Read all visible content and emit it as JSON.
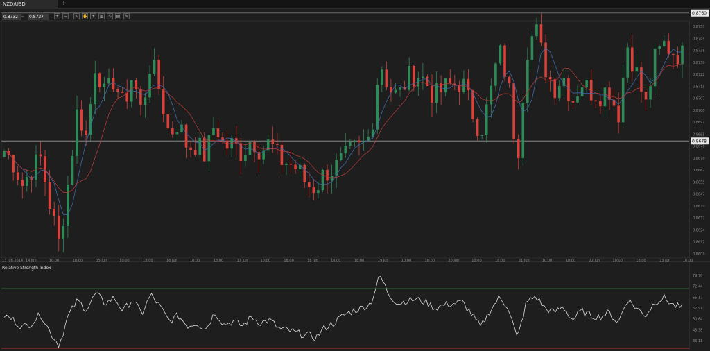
{
  "tab": {
    "symbol": "NZD/USD",
    "add_label": "+"
  },
  "quote": {
    "bid": "0.8732",
    "ask": "0.8737",
    "separator": "="
  },
  "toolbar_icons": [
    "zoom-in-icon",
    "zoom-out-icon",
    "cursor-icon",
    "hand-icon",
    "crosshair-icon",
    "chart-type-icon",
    "indicator-icon",
    "template-icon",
    "draw-icon"
  ],
  "colors": {
    "bull": "#2e8b57",
    "bear": "#d9413a",
    "ma_fast": "#3c6aa8",
    "ma_slow": "#b23a3a",
    "rsi_line": "#dcdcdc",
    "rsi_upper": "#3a7a3a",
    "rsi_lower": "#b23030",
    "price_tag_bg": "#e8e8e8"
  },
  "chart_data": [
    {
      "type": "candlestick",
      "symbol": "NZD/USD",
      "y_ticks": [
        "0.8753",
        "0.8745",
        "0.8738",
        "0.8730",
        "0.8722",
        "0.8715",
        "0.8707",
        "0.8700",
        "0.8692",
        "0.8685",
        "0.8678",
        "0.8670",
        "0.8662",
        "0.8655",
        "0.8647",
        "0.8639",
        "0.8632",
        "0.8624",
        "0.8617",
        "0.8609"
      ],
      "ylim": [
        0.8603,
        0.8755
      ],
      "x_ticks": [
        "13 Jun 2014",
        "14 Jun",
        "10:00",
        "18:00",
        "15 Jun",
        "10:00",
        "18:00",
        "16 Jun",
        "10:00",
        "18:00",
        "17 Jun",
        "10:00",
        "18:00",
        "18 Jun",
        "10:00",
        "18:00",
        "19 Jun",
        "10:00",
        "18:00",
        "20 Jun",
        "10:00",
        "18:00",
        "21 Jun",
        "10:00",
        "18:00",
        "22 Jun",
        "10:00",
        "18:00",
        "23 Jun",
        "10:00"
      ],
      "current_price_tag": "0.8760",
      "horizontal_line_tag": "0.8678",
      "horizontal_line_value": 0.8678,
      "top_line_value": 0.876,
      "close_path": [
        0.8672,
        0.8664,
        0.865,
        0.866,
        0.8667,
        0.8637,
        0.8612,
        0.8652,
        0.8698,
        0.868,
        0.873,
        0.8706,
        0.8718,
        0.87,
        0.872,
        0.8696,
        0.873,
        0.871,
        0.8682,
        0.869,
        0.8674,
        0.8676,
        0.8668,
        0.869,
        0.8674,
        0.8676,
        0.867,
        0.868,
        0.8672,
        0.8677,
        0.8666,
        0.8664,
        0.866,
        0.865,
        0.8648,
        0.8658,
        0.866,
        0.8666,
        0.8672,
        0.8674,
        0.8682,
        0.873,
        0.8712,
        0.8706,
        0.8718,
        0.8722,
        0.8716,
        0.8706,
        0.8712,
        0.8714,
        0.8716,
        0.8698,
        0.8684,
        0.8706,
        0.8736,
        0.8716,
        0.8666,
        0.8736,
        0.875,
        0.8726,
        0.8712,
        0.872,
        0.8704,
        0.8716,
        0.871,
        0.8708,
        0.8712,
        0.8694,
        0.874,
        0.8722,
        0.87,
        0.873,
        0.874,
        0.8735,
        0.8733
      ]
    },
    {
      "type": "line",
      "title": "Relative Strength Index",
      "y_ticks": [
        "79.70",
        "72.44",
        "65.17",
        "57.91",
        "50.64",
        "43.38",
        "36.11"
      ],
      "ylim": [
        30,
        85
      ],
      "overbought": 70,
      "oversold": 30,
      "values": [
        52,
        49,
        44,
        47,
        53,
        41,
        32,
        52,
        62,
        56,
        67,
        60,
        64,
        55,
        63,
        53,
        66,
        58,
        48,
        52,
        45,
        47,
        43,
        54,
        46,
        48,
        45,
        51,
        47,
        49,
        43,
        42,
        40,
        39,
        37,
        44,
        47,
        52,
        55,
        57,
        60,
        79,
        66,
        60,
        62,
        63,
        61,
        57,
        59,
        60,
        61,
        53,
        44,
        55,
        64,
        58,
        36,
        61,
        65,
        57,
        54,
        58,
        49,
        55,
        52,
        51,
        54,
        47,
        63,
        57,
        52,
        61,
        64,
        59,
        57
      ]
    }
  ]
}
